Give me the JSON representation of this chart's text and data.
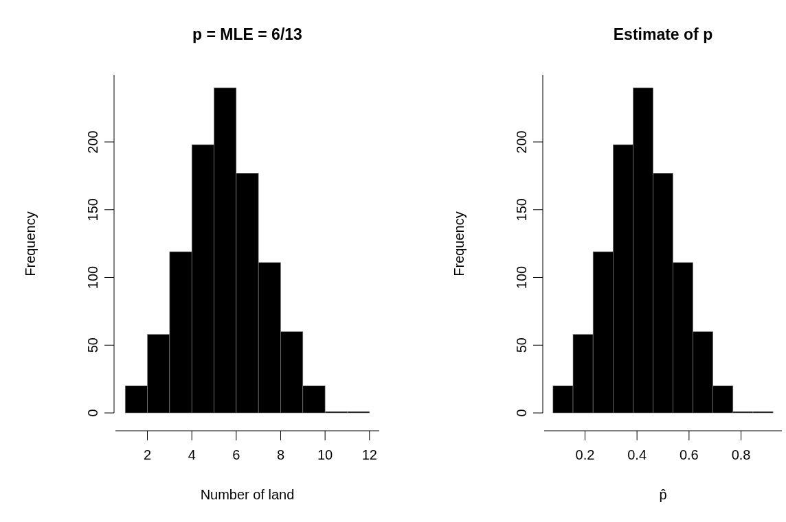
{
  "chart_data": [
    {
      "type": "histogram",
      "title": "p = MLE = 6/13",
      "xlabel": "Number of land",
      "ylabel": "Frequency",
      "bins": [
        1,
        2,
        3,
        4,
        5,
        6,
        7,
        8,
        9,
        10,
        11,
        12
      ],
      "values": [
        20,
        58,
        119,
        198,
        240,
        177,
        111,
        60,
        20,
        1,
        1
      ],
      "color": "#000000",
      "xlim": [
        0.56,
        12.44
      ],
      "ylim": [
        0,
        249.6
      ],
      "xticks": [
        2,
        4,
        6,
        8,
        10,
        12
      ],
      "yticks": [
        0,
        50,
        100,
        150,
        200
      ],
      "grid": false
    },
    {
      "type": "histogram",
      "title": "Estimate of p",
      "xlabel": "p̂",
      "ylabel": "Frequency",
      "bins": [
        0.077,
        0.154,
        0.231,
        0.308,
        0.385,
        0.462,
        0.538,
        0.615,
        0.692,
        0.769,
        0.846,
        0.923
      ],
      "values": [
        20,
        58,
        119,
        198,
        240,
        177,
        111,
        60,
        20,
        1,
        1
      ],
      "color": "#000000",
      "xlim": [
        0.043,
        0.957
      ],
      "ylim": [
        0,
        249.6
      ],
      "xticks": [
        0.2,
        0.4,
        0.6,
        0.8
      ],
      "yticks": [
        0,
        50,
        100,
        150,
        200
      ],
      "grid": false
    }
  ]
}
